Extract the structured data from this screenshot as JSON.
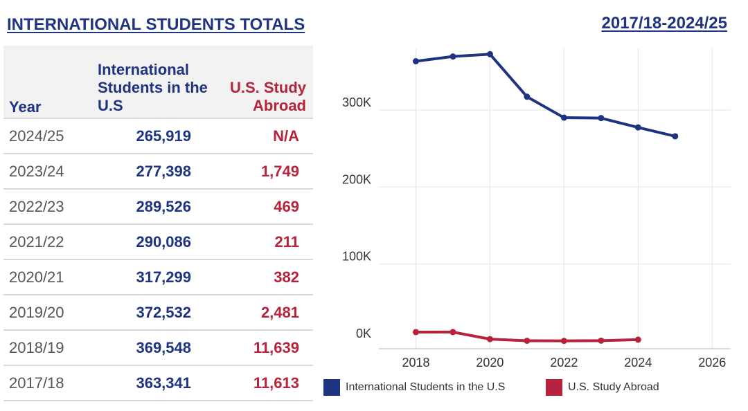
{
  "header": {
    "title": "INTERNATIONAL STUDENTS TOTALS",
    "range": "2017/18-2024/25"
  },
  "table": {
    "headers": {
      "year": "Year",
      "intl": "International Students in the U.S",
      "abroad": "U.S. Study Abroad"
    },
    "rows": [
      {
        "year": "2024/25",
        "intl": "265,919",
        "abroad": "N/A"
      },
      {
        "year": "2023/24",
        "intl": "277,398",
        "abroad": "1,749"
      },
      {
        "year": "2022/23",
        "intl": "289,526",
        "abroad": "469"
      },
      {
        "year": "2021/22",
        "intl": "290,086",
        "abroad": "211"
      },
      {
        "year": "2020/21",
        "intl": "317,299",
        "abroad": "382"
      },
      {
        "year": "2019/20",
        "intl": "372,532",
        "abroad": "2,481"
      },
      {
        "year": "2018/19",
        "intl": "369,548",
        "abroad": "11,639"
      },
      {
        "year": "2017/18",
        "intl": "363,341",
        "abroad": "11,613"
      }
    ]
  },
  "colors": {
    "intl": "#1f3480",
    "abroad": "#b5243a",
    "grid": "#e6e6e6"
  },
  "chart_data": {
    "type": "line",
    "x_ticks": [
      2018,
      2020,
      2022,
      2024,
      2026
    ],
    "y_ticks": [
      0,
      100000,
      200000,
      300000
    ],
    "y_tick_labels": [
      "0K",
      "100K",
      "200K",
      "300K"
    ],
    "xlim": [
      2017,
      2026.5
    ],
    "ylim": [
      -10000,
      380000
    ],
    "grid": true,
    "legend_position": "bottom",
    "series": [
      {
        "name": "International Students in the U.S",
        "x": [
          2018,
          2019,
          2020,
          2021,
          2022,
          2023,
          2024,
          2025
        ],
        "values": [
          363341,
          369548,
          372532,
          317299,
          290086,
          289526,
          277398,
          265919
        ]
      },
      {
        "name": "U.S. Study Abroad",
        "x": [
          2018,
          2019,
          2020,
          2021,
          2022,
          2023,
          2024
        ],
        "values": [
          11613,
          11639,
          2481,
          382,
          211,
          469,
          1749
        ]
      }
    ]
  }
}
